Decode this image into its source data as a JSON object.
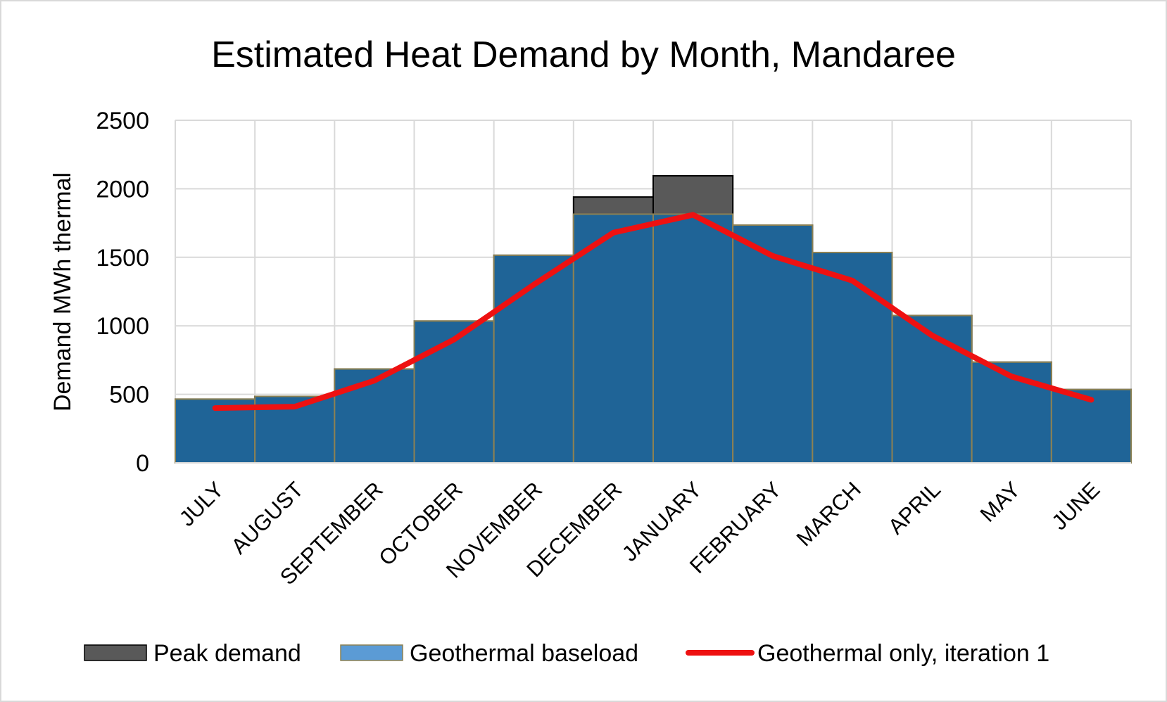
{
  "chart_data": {
    "type": "bar",
    "title": "Estimated Heat Demand by Month, Mandaree",
    "xlabel": "",
    "ylabel": "Demand MWh thermal",
    "ylim": [
      0,
      2500
    ],
    "yticks": [
      0,
      500,
      1000,
      1500,
      2000,
      2500
    ],
    "grid": true,
    "legend_position": "bottom",
    "categories": [
      "JULY",
      "AUGUST",
      "SEPTEMBER",
      "OCTOBER",
      "NOVEMBER",
      "DECEMBER",
      "JANUARY",
      "FEBRUARY",
      "MARCH",
      "APRIL",
      "MAY",
      "JUNE"
    ],
    "series": [
      {
        "name": "Peak demand",
        "kind": "bar",
        "color": "#595959",
        "values": [
          465,
          485,
          685,
          1035,
          1515,
          1940,
          2095,
          1735,
          1535,
          1075,
          735,
          535
        ]
      },
      {
        "name": "Geothermal baseload",
        "kind": "bar",
        "color": "#1f6497",
        "legend_color": "#5b9bd5",
        "values": [
          465,
          485,
          685,
          1035,
          1515,
          1815,
          1815,
          1735,
          1535,
          1075,
          735,
          535
        ]
      },
      {
        "name": "Geothermal only, iteration 1",
        "kind": "line",
        "color": "#ee1111",
        "values": [
          400,
          410,
          600,
          900,
          1300,
          1680,
          1810,
          1510,
          1330,
          930,
          630,
          460
        ]
      }
    ]
  }
}
